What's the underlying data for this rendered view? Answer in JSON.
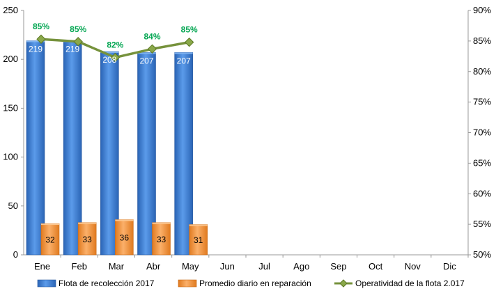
{
  "chart_data": {
    "type": "bar",
    "categories": [
      "Ene",
      "Feb",
      "Mar",
      "Abr",
      "May",
      "Jun",
      "Jul",
      "Ago",
      "Sep",
      "Oct",
      "Nov",
      "Dic"
    ],
    "series": [
      {
        "name": "Flota de recolección 2017",
        "kind": "bar",
        "axis": "left",
        "color": "#3d7fd4",
        "values": [
          219,
          219,
          208,
          207,
          207,
          null,
          null,
          null,
          null,
          null,
          null,
          null
        ],
        "labels": [
          "219",
          "219",
          "208",
          "207",
          "207"
        ]
      },
      {
        "name": "Promedio diario en reparación",
        "kind": "bar",
        "axis": "left",
        "color": "#f79646",
        "values": [
          32,
          33,
          36,
          33,
          31,
          null,
          null,
          null,
          null,
          null,
          null,
          null
        ],
        "labels": [
          "32",
          "33",
          "36",
          "33",
          "31"
        ]
      },
      {
        "name": "Operatividad de la flota 2.017",
        "kind": "line",
        "axis": "right",
        "color": "#76923c",
        "values": [
          0.853,
          0.849,
          0.823,
          0.837,
          0.848,
          null,
          null,
          null,
          null,
          null,
          null,
          null
        ],
        "labels": [
          "85%",
          "85%",
          "82%",
          "84%",
          "85%"
        ]
      }
    ],
    "y_left": {
      "ylim": [
        0,
        250
      ],
      "ticks": [
        "0",
        "50",
        "100",
        "150",
        "200",
        "250"
      ]
    },
    "y_right": {
      "ylim": [
        0.5,
        0.9
      ],
      "ticks": [
        "50%",
        "55%",
        "60%",
        "65%",
        "70%",
        "75%",
        "80%",
        "85%",
        "90%"
      ]
    },
    "legend_position": "bottom",
    "grid": false
  }
}
